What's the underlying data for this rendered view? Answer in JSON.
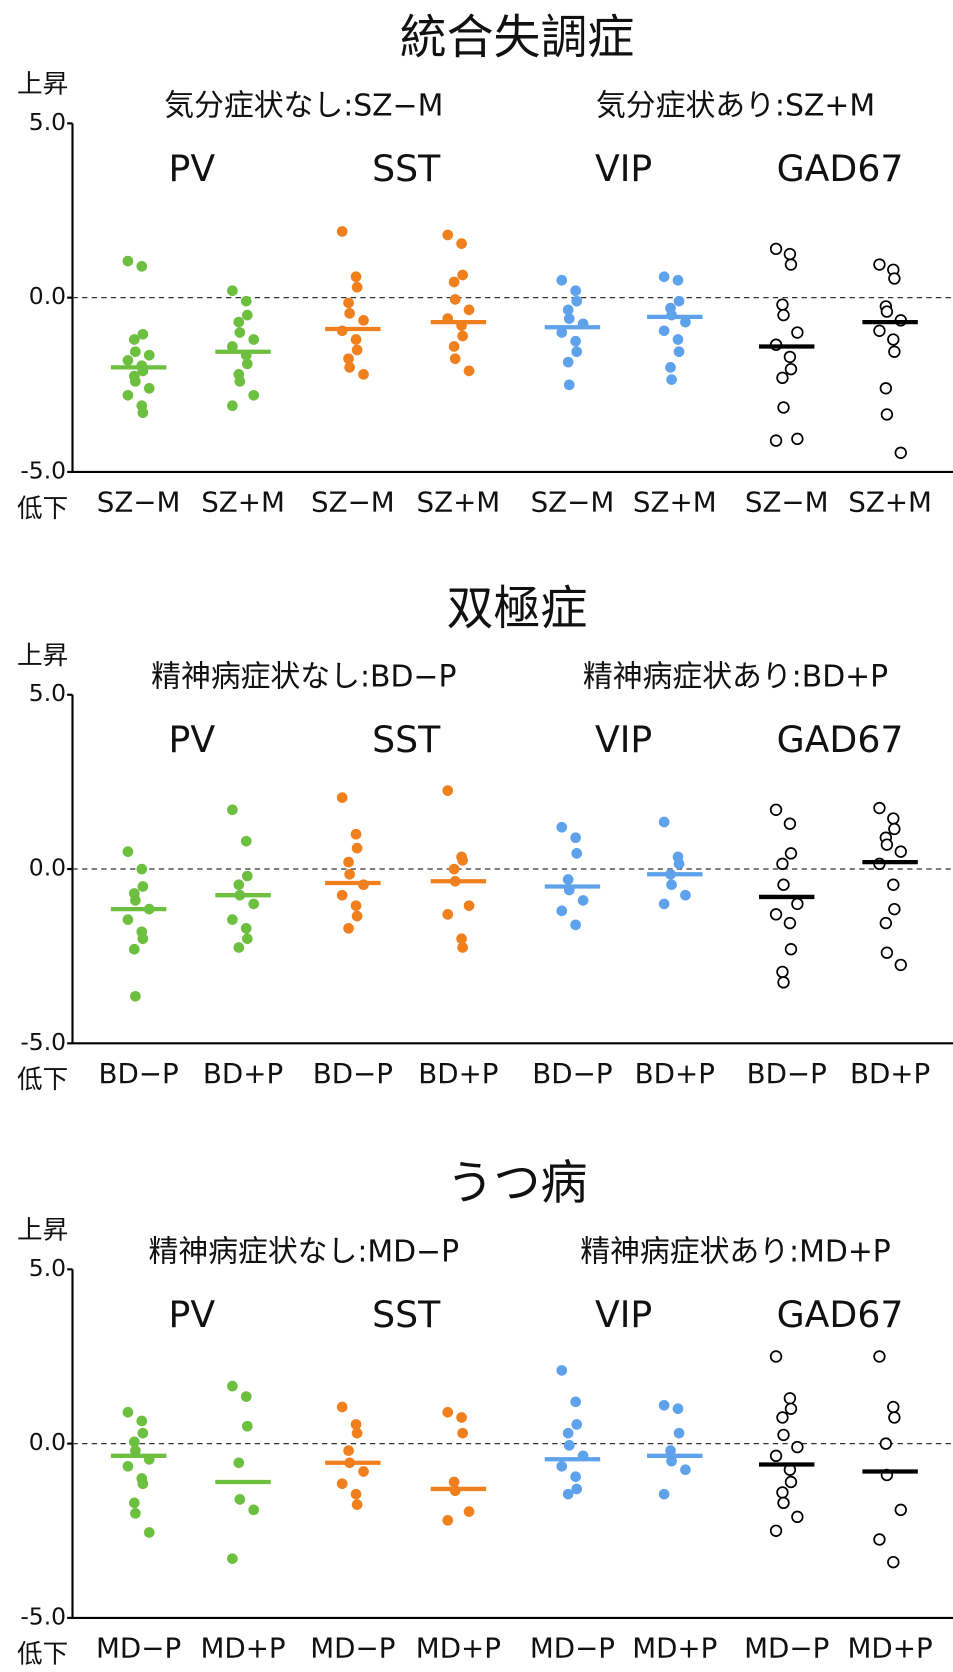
{
  "chart_data": [
    {
      "type": "strip",
      "title": "統合失調症",
      "subtitles": [
        "気分症状なし:SZ−M",
        "気分症状あり:SZ+M"
      ],
      "up_label": "上昇",
      "down_label": "低下",
      "ylim": [
        -5,
        5
      ],
      "yticks": [
        {
          "value": -5,
          "label": "-5.0"
        },
        {
          "value": 0,
          "label": "0.0"
        },
        {
          "value": 5,
          "label": "5.0"
        }
      ],
      "zero_line": true,
      "groups": [
        {
          "name": "PV",
          "color": "#6cbf3f",
          "filled": true
        },
        {
          "name": "SST",
          "color": "#f07f1e",
          "filled": true
        },
        {
          "name": "VIP",
          "color": "#5ea2ec",
          "filled": true
        },
        {
          "name": "GAD67",
          "color": "#000000",
          "filled": false
        }
      ],
      "categories": [
        "SZ−M",
        "SZ+M",
        "SZ−M",
        "SZ+M",
        "SZ−M",
        "SZ+M",
        "SZ−M",
        "SZ+M"
      ],
      "strips": [
        {
          "values": [
            1.05,
            0.9,
            -1.05,
            -1.2,
            -1.55,
            -1.65,
            -1.8,
            -1.95,
            -2.1,
            -2.25,
            -2.4,
            -2.6,
            -2.8,
            -3.1,
            -3.3
          ],
          "mean": -2.0
        },
        {
          "values": [
            0.2,
            -0.1,
            -0.5,
            -0.7,
            -1.0,
            -1.2,
            -1.4,
            -1.65,
            -1.9,
            -2.2,
            -2.4,
            -2.8,
            -3.1
          ],
          "mean": -1.55
        },
        {
          "values": [
            1.9,
            0.6,
            0.3,
            -0.15,
            -0.45,
            -0.65,
            -0.95,
            -1.2,
            -1.5,
            -1.75,
            -2.0,
            -2.2
          ],
          "mean": -0.9
        },
        {
          "values": [
            1.8,
            1.55,
            0.65,
            0.45,
            -0.05,
            -0.35,
            -0.6,
            -0.8,
            -1.1,
            -1.4,
            -1.75,
            -2.1
          ],
          "mean": -0.7
        },
        {
          "values": [
            0.5,
            0.2,
            -0.1,
            -0.35,
            -0.6,
            -0.75,
            -1.0,
            -1.25,
            -1.55,
            -1.85,
            -2.5
          ],
          "mean": -0.85
        },
        {
          "values": [
            0.6,
            0.5,
            -0.1,
            -0.3,
            -0.5,
            -0.7,
            -0.95,
            -1.2,
            -1.55,
            -2.0,
            -2.35
          ],
          "mean": -0.55
        },
        {
          "values": [
            1.4,
            1.25,
            0.95,
            -0.2,
            -0.5,
            -1.0,
            -1.35,
            -1.7,
            -2.05,
            -2.3,
            -3.15,
            -4.05,
            -4.1
          ],
          "mean": -1.4
        },
        {
          "values": [
            0.95,
            0.8,
            0.55,
            -0.25,
            -0.4,
            -0.65,
            -0.95,
            -1.2,
            -1.55,
            -2.6,
            -3.35,
            -4.45
          ],
          "mean": -0.7
        }
      ]
    },
    {
      "type": "strip",
      "title": "双極症",
      "subtitles": [
        "精神病症状なし:BD−P",
        "精神病症状あり:BD+P"
      ],
      "up_label": "上昇",
      "down_label": "低下",
      "ylim": [
        -5,
        5
      ],
      "yticks": [
        {
          "value": -5,
          "label": "-5.0"
        },
        {
          "value": 0,
          "label": "0.0"
        },
        {
          "value": 5,
          "label": "5.0"
        }
      ],
      "zero_line": true,
      "groups": [
        {
          "name": "PV",
          "color": "#6cbf3f",
          "filled": true
        },
        {
          "name": "SST",
          "color": "#f07f1e",
          "filled": true
        },
        {
          "name": "VIP",
          "color": "#5ea2ec",
          "filled": true
        },
        {
          "name": "GAD67",
          "color": "#000000",
          "filled": false
        }
      ],
      "categories": [
        "BD−P",
        "BD+P",
        "BD−P",
        "BD+P",
        "BD−P",
        "BD+P",
        "BD−P",
        "BD+P"
      ],
      "strips": [
        {
          "values": [
            0.5,
            0,
            -0.5,
            -0.7,
            -0.9,
            -1.15,
            -1.45,
            -1.8,
            -2.0,
            -2.3,
            -3.65
          ],
          "mean": -1.15
        },
        {
          "values": [
            1.7,
            0.8,
            -0.2,
            -0.45,
            -0.75,
            -1.0,
            -1.45,
            -1.7,
            -2.0,
            -2.25
          ],
          "mean": -0.75
        },
        {
          "values": [
            2.05,
            1.0,
            0.6,
            0.2,
            -0.15,
            -0.45,
            -0.75,
            -1.05,
            -1.35,
            -1.7
          ],
          "mean": -0.4
        },
        {
          "values": [
            2.25,
            0.35,
            0.25,
            0,
            -0.35,
            -1.05,
            -1.3,
            -2.0,
            -2.25
          ],
          "mean": -0.35
        },
        {
          "values": [
            1.2,
            0.9,
            0.45,
            -0.3,
            -0.6,
            -0.9,
            -1.2,
            -1.6
          ],
          "mean": -0.5
        },
        {
          "values": [
            1.35,
            0.35,
            0.15,
            -0.15,
            -0.45,
            -0.75,
            -1.0
          ],
          "mean": -0.15
        },
        {
          "values": [
            1.7,
            1.3,
            0.45,
            0.15,
            -0.45,
            -1.0,
            -1.3,
            -1.55,
            -2.3,
            -2.95,
            -3.25
          ],
          "mean": -0.8
        },
        {
          "values": [
            1.75,
            1.45,
            1.15,
            0.9,
            0.7,
            0.5,
            0.15,
            -0.45,
            -1.15,
            -1.55,
            -2.4,
            -2.75
          ],
          "mean": 0.2
        }
      ]
    },
    {
      "type": "strip",
      "title": "うつ病",
      "subtitles": [
        "精神病症状なし:MD−P",
        "精神病症状あり:MD+P"
      ],
      "up_label": "上昇",
      "down_label": "低下",
      "ylim": [
        -5,
        5
      ],
      "yticks": [
        {
          "value": -5,
          "label": "-5.0"
        },
        {
          "value": 0,
          "label": "0.0"
        },
        {
          "value": 5,
          "label": "5.0"
        }
      ],
      "zero_line": true,
      "groups": [
        {
          "name": "PV",
          "color": "#6cbf3f",
          "filled": true
        },
        {
          "name": "SST",
          "color": "#f07f1e",
          "filled": true
        },
        {
          "name": "VIP",
          "color": "#5ea2ec",
          "filled": true
        },
        {
          "name": "GAD67",
          "color": "#000000",
          "filled": false
        }
      ],
      "categories": [
        "MD−P",
        "MD+P",
        "MD−P",
        "MD+P",
        "MD−P",
        "MD+P",
        "MD−P",
        "MD+P"
      ],
      "strips": [
        {
          "values": [
            0.9,
            0.65,
            0.3,
            0.05,
            -0.2,
            -0.45,
            -0.65,
            -1.0,
            -1.15,
            -1.7,
            -2.0,
            -2.55
          ],
          "mean": -0.35
        },
        {
          "values": [
            1.65,
            1.35,
            0.5,
            -0.55,
            -1.6,
            -1.9,
            -3.3
          ],
          "mean": -1.1
        },
        {
          "values": [
            1.05,
            0.55,
            0.3,
            -0.2,
            -0.55,
            -0.8,
            -1.15,
            -1.45,
            -1.75
          ],
          "mean": -0.55
        },
        {
          "values": [
            0.9,
            0.75,
            0.3,
            -1.1,
            -1.35,
            -1.95,
            -2.2
          ],
          "mean": -1.3
        },
        {
          "values": [
            2.1,
            1.2,
            0.55,
            0.3,
            -0.05,
            -0.35,
            -0.65,
            -0.95,
            -1.3,
            -1.45
          ],
          "mean": -0.45
        },
        {
          "values": [
            1.1,
            1.0,
            0.3,
            -0.2,
            -0.5,
            -0.75,
            -1.45
          ],
          "mean": -0.35
        },
        {
          "values": [
            2.5,
            1.3,
            1.0,
            0.75,
            0.25,
            -0.1,
            -0.35,
            -0.75,
            -1.1,
            -1.4,
            -1.7,
            -2.1,
            -2.5
          ],
          "mean": -0.6
        },
        {
          "values": [
            2.5,
            1.05,
            0.75,
            0,
            -0.9,
            -1.9,
            -2.75,
            -3.4
          ],
          "mean": -0.8
        }
      ]
    }
  ]
}
